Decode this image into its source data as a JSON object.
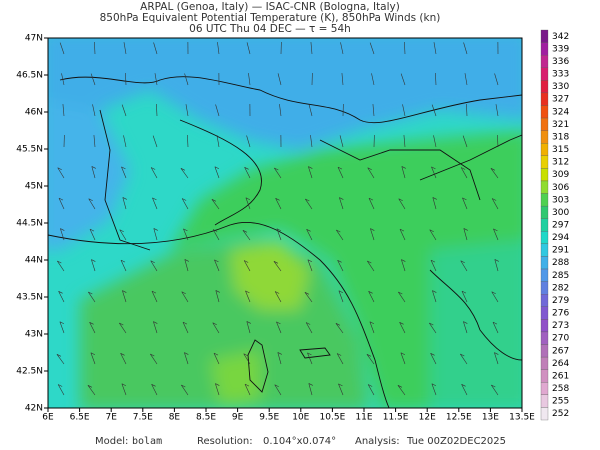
{
  "header": {
    "line1": "ARPAL (Genoa, Italy)  —  ISAC-CNR (Bologna, Italy)",
    "line2": "850hPa Equivalent Potential Temperature (K), 850hPa Winds (kn)",
    "line3": "06 UTC Thu 04 DEC  —  τ = 54h"
  },
  "map": {
    "lat_ticks": [
      "47N",
      "46.5N",
      "46N",
      "45.5N",
      "45N",
      "44.5N",
      "44N",
      "43.5N",
      "43N",
      "42.5N",
      "42N"
    ],
    "lon_ticks": [
      "6E",
      "6.5E",
      "7E",
      "7.5E",
      "8E",
      "8.5E",
      "9E",
      "9.5E",
      "10E",
      "10.5E",
      "11E",
      "11.5E",
      "12E",
      "12.5E",
      "13E",
      "13.5E"
    ]
  },
  "colorbar": {
    "labels": [
      "342",
      "339",
      "336",
      "333",
      "330",
      "327",
      "324",
      "321",
      "318",
      "315",
      "312",
      "309",
      "306",
      "303",
      "300",
      "297",
      "294",
      "291",
      "288",
      "285",
      "282",
      "279",
      "276",
      "273",
      "270",
      "267",
      "264",
      "261",
      "258",
      "255",
      "252"
    ]
  },
  "footer": {
    "model": {
      "label": "Model:",
      "value": "bolam"
    },
    "resolution": {
      "label": "Resolution:",
      "value": "0.104°x0.074°"
    },
    "analysis": {
      "label": "Analysis:",
      "value": "Tue 00Z02DEC2025"
    }
  }
}
